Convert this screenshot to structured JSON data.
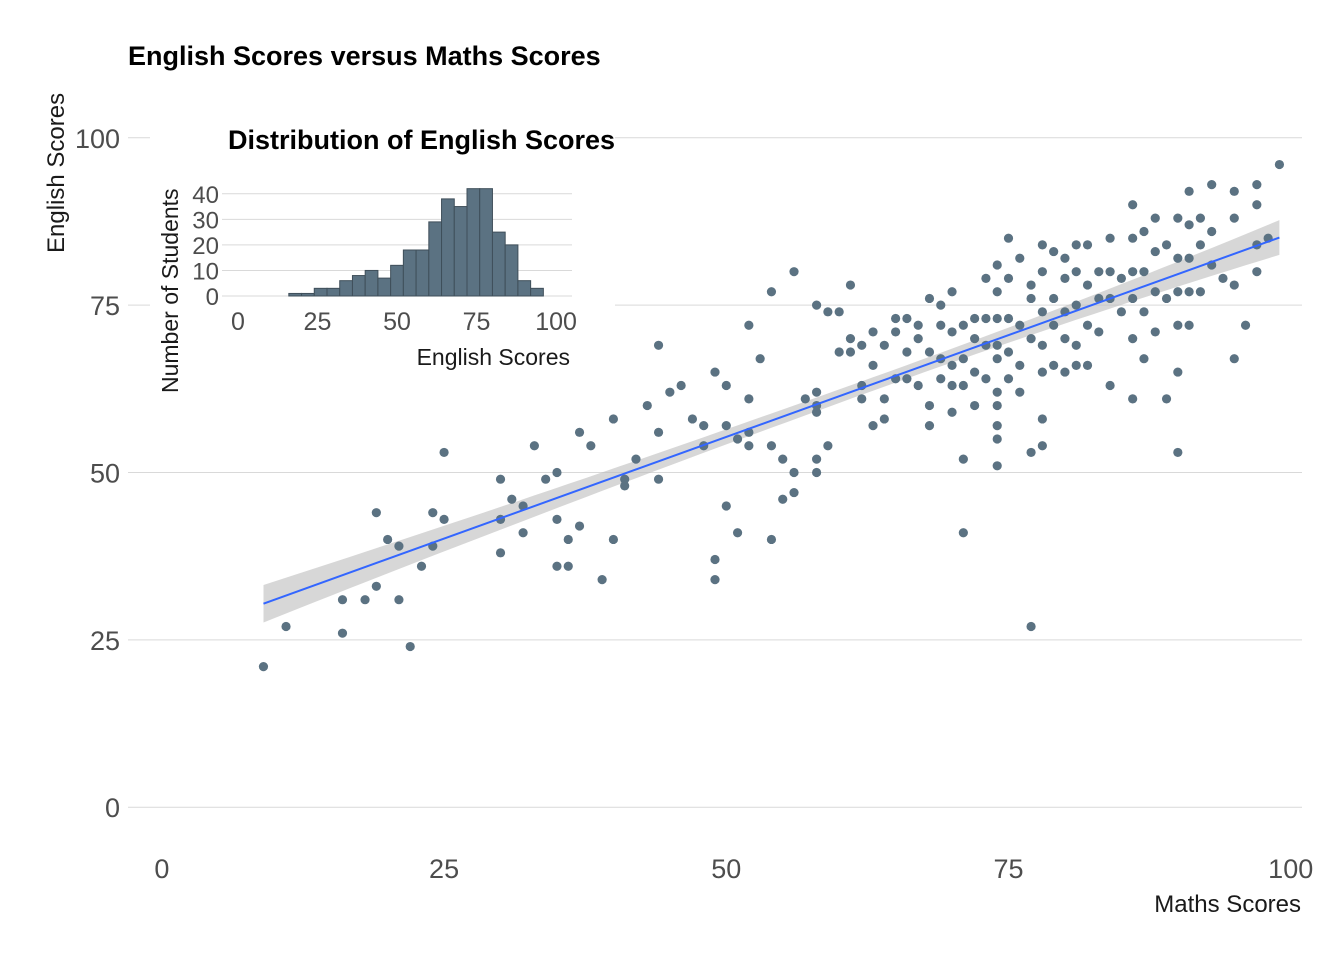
{
  "chart_data": [
    {
      "type": "scatter",
      "title": "English Scores versus Maths Scores",
      "xlabel": "Maths Scores",
      "ylabel": "English Scores",
      "xlim": [
        -3,
        101
      ],
      "ylim": [
        -4,
        104
      ],
      "xticks": [
        0,
        25,
        50,
        75,
        100
      ],
      "yticks": [
        0,
        25,
        50,
        75,
        100
      ],
      "grid": "horizontal",
      "point_color": "#5b7282",
      "trend": {
        "method": "linear",
        "color": "#3366ff",
        "band_color": "#bdbdbd",
        "x_range": [
          9,
          99
        ],
        "y_start": 30.4,
        "y_end": 85.1,
        "se_start": 2.8,
        "se_end": 2.6,
        "se_mid": 1.0,
        "x_mid": 65
      },
      "points": [
        [
          9,
          21
        ],
        [
          11,
          27
        ],
        [
          16,
          26
        ],
        [
          16,
          31
        ],
        [
          18,
          31
        ],
        [
          19,
          33
        ],
        [
          19,
          44
        ],
        [
          20,
          40
        ],
        [
          21,
          39
        ],
        [
          21,
          31
        ],
        [
          22,
          24
        ],
        [
          23,
          36
        ],
        [
          24,
          44
        ],
        [
          24,
          39
        ],
        [
          25,
          43
        ],
        [
          25,
          53
        ],
        [
          30,
          49
        ],
        [
          30,
          43
        ],
        [
          30,
          38
        ],
        [
          31,
          46
        ],
        [
          32,
          45
        ],
        [
          32,
          41
        ],
        [
          33,
          54
        ],
        [
          34,
          49
        ],
        [
          35,
          50
        ],
        [
          35,
          43
        ],
        [
          35,
          36
        ],
        [
          36,
          36
        ],
        [
          36,
          40
        ],
        [
          36,
          64
        ],
        [
          37,
          56
        ],
        [
          37,
          42
        ],
        [
          38,
          54
        ],
        [
          39,
          34
        ],
        [
          40,
          58
        ],
        [
          40,
          40
        ],
        [
          41,
          48
        ],
        [
          41,
          49
        ],
        [
          42,
          52
        ],
        [
          43,
          60
        ],
        [
          44,
          69
        ],
        [
          44,
          56
        ],
        [
          44,
          49
        ],
        [
          45,
          62
        ],
        [
          46,
          63
        ],
        [
          47,
          58
        ],
        [
          48,
          54
        ],
        [
          48,
          57
        ],
        [
          49,
          65
        ],
        [
          49,
          37
        ],
        [
          49,
          34
        ],
        [
          50,
          63
        ],
        [
          50,
          57
        ],
        [
          50,
          45
        ],
        [
          51,
          41
        ],
        [
          51,
          55
        ],
        [
          52,
          72
        ],
        [
          52,
          61
        ],
        [
          52,
          54
        ],
        [
          52,
          56
        ],
        [
          53,
          67
        ],
        [
          54,
          54
        ],
        [
          54,
          40
        ],
        [
          54,
          77
        ],
        [
          55,
          52
        ],
        [
          55,
          46
        ],
        [
          56,
          80
        ],
        [
          56,
          47
        ],
        [
          56,
          50
        ],
        [
          57,
          61
        ],
        [
          58,
          52
        ],
        [
          58,
          50
        ],
        [
          58,
          62
        ],
        [
          58,
          60
        ],
        [
          58,
          59
        ],
        [
          58,
          75
        ],
        [
          59,
          74
        ],
        [
          59,
          54
        ],
        [
          60,
          74
        ],
        [
          60,
          68
        ],
        [
          61,
          70
        ],
        [
          61,
          68
        ],
        [
          61,
          78
        ],
        [
          62,
          63
        ],
        [
          62,
          61
        ],
        [
          62,
          69
        ],
        [
          63,
          71
        ],
        [
          63,
          57
        ],
        [
          63,
          66
        ],
        [
          64,
          69
        ],
        [
          64,
          61
        ],
        [
          64,
          58
        ],
        [
          65,
          71
        ],
        [
          65,
          64
        ],
        [
          65,
          73
        ],
        [
          66,
          73
        ],
        [
          66,
          68
        ],
        [
          66,
          64
        ],
        [
          67,
          70
        ],
        [
          67,
          63
        ],
        [
          67,
          72
        ],
        [
          68,
          76
        ],
        [
          68,
          68
        ],
        [
          68,
          60
        ],
        [
          68,
          57
        ],
        [
          69,
          75
        ],
        [
          69,
          72
        ],
        [
          69,
          67
        ],
        [
          69,
          64
        ],
        [
          70,
          77
        ],
        [
          70,
          71
        ],
        [
          70,
          66
        ],
        [
          70,
          63
        ],
        [
          70,
          59
        ],
        [
          71,
          72
        ],
        [
          71,
          67
        ],
        [
          71,
          63
        ],
        [
          71,
          52
        ],
        [
          71,
          41
        ],
        [
          72,
          73
        ],
        [
          72,
          70
        ],
        [
          72,
          65
        ],
        [
          72,
          60
        ],
        [
          73,
          79
        ],
        [
          73,
          73
        ],
        [
          73,
          69
        ],
        [
          73,
          64
        ],
        [
          74,
          81
        ],
        [
          74,
          77
        ],
        [
          74,
          73
        ],
        [
          74,
          69
        ],
        [
          74,
          67
        ],
        [
          74,
          62
        ],
        [
          74,
          60
        ],
        [
          74,
          57
        ],
        [
          74,
          55
        ],
        [
          74,
          51
        ],
        [
          75,
          85
        ],
        [
          75,
          79
        ],
        [
          75,
          73
        ],
        [
          75,
          68
        ],
        [
          75,
          64
        ],
        [
          76,
          82
        ],
        [
          76,
          72
        ],
        [
          76,
          66
        ],
        [
          76,
          62
        ],
        [
          77,
          78
        ],
        [
          77,
          76
        ],
        [
          77,
          70
        ],
        [
          77,
          53
        ],
        [
          77,
          27
        ],
        [
          78,
          84
        ],
        [
          78,
          80
        ],
        [
          78,
          74
        ],
        [
          78,
          69
        ],
        [
          78,
          65
        ],
        [
          78,
          58
        ],
        [
          78,
          54
        ],
        [
          79,
          83
        ],
        [
          79,
          76
        ],
        [
          79,
          72
        ],
        [
          79,
          66
        ],
        [
          80,
          82
        ],
        [
          80,
          79
        ],
        [
          80,
          74
        ],
        [
          80,
          70
        ],
        [
          80,
          65
        ],
        [
          81,
          84
        ],
        [
          81,
          80
        ],
        [
          81,
          75
        ],
        [
          81,
          69
        ],
        [
          81,
          66
        ],
        [
          82,
          84
        ],
        [
          82,
          78
        ],
        [
          82,
          72
        ],
        [
          82,
          66
        ],
        [
          83,
          80
        ],
        [
          83,
          76
        ],
        [
          83,
          71
        ],
        [
          84,
          85
        ],
        [
          84,
          80
        ],
        [
          84,
          76
        ],
        [
          84,
          63
        ],
        [
          85,
          79
        ],
        [
          85,
          74
        ],
        [
          86,
          90
        ],
        [
          86,
          85
        ],
        [
          86,
          80
        ],
        [
          86,
          76
        ],
        [
          86,
          70
        ],
        [
          86,
          61
        ],
        [
          87,
          86
        ],
        [
          87,
          80
        ],
        [
          87,
          74
        ],
        [
          87,
          67
        ],
        [
          88,
          88
        ],
        [
          88,
          83
        ],
        [
          88,
          77
        ],
        [
          88,
          71
        ],
        [
          89,
          84
        ],
        [
          89,
          76
        ],
        [
          89,
          61
        ],
        [
          90,
          88
        ],
        [
          90,
          82
        ],
        [
          90,
          77
        ],
        [
          90,
          72
        ],
        [
          90,
          65
        ],
        [
          90,
          53
        ],
        [
          91,
          92
        ],
        [
          91,
          87
        ],
        [
          91,
          82
        ],
        [
          91,
          77
        ],
        [
          91,
          72
        ],
        [
          92,
          88
        ],
        [
          92,
          84
        ],
        [
          92,
          77
        ],
        [
          93,
          93
        ],
        [
          93,
          86
        ],
        [
          93,
          81
        ],
        [
          94,
          79
        ],
        [
          95,
          92
        ],
        [
          95,
          88
        ],
        [
          95,
          78
        ],
        [
          95,
          67
        ],
        [
          96,
          72
        ],
        [
          97,
          93
        ],
        [
          97,
          90
        ],
        [
          97,
          84
        ],
        [
          97,
          80
        ],
        [
          98,
          85
        ],
        [
          99,
          96
        ]
      ]
    },
    {
      "type": "bar",
      "title": "Distribution of English Scores",
      "xlabel": "English Scores",
      "ylabel": "Number of Students",
      "xlim": [
        -5,
        105
      ],
      "ylim": [
        0,
        45
      ],
      "xticks": [
        0,
        25,
        50,
        75,
        100
      ],
      "yticks": [
        0,
        10,
        20,
        30,
        40
      ],
      "bin_width": 4,
      "bin_start": 16,
      "values": [
        1,
        1,
        3,
        3,
        6,
        8,
        10,
        7,
        12,
        18,
        18,
        29,
        38,
        35,
        42,
        42,
        25,
        20,
        6,
        3
      ],
      "bar_color": "#5b7282",
      "bar_edge": "#3f4f5a"
    }
  ]
}
